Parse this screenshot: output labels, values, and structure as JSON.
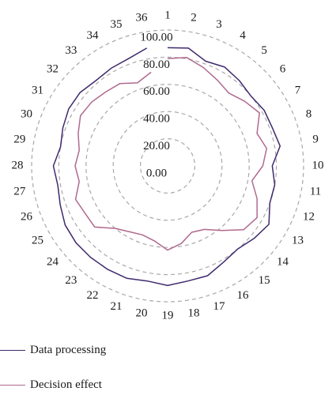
{
  "chart_data": {
    "type": "radar",
    "title": "",
    "categories": [
      "1",
      "2",
      "3",
      "4",
      "5",
      "6",
      "7",
      "8",
      "9",
      "10",
      "11",
      "12",
      "13",
      "14",
      "15",
      "16",
      "17",
      "18",
      "19",
      "20",
      "21",
      "22",
      "23",
      "24",
      "25",
      "26",
      "27",
      "28",
      "29",
      "30",
      "31",
      "32",
      "33",
      "34",
      "35",
      "36"
    ],
    "tick_labels": [
      "0.00",
      "20.00",
      "40.00",
      "60.00",
      "80.00",
      "100.00"
    ],
    "r_range": [
      0,
      100
    ],
    "series": [
      {
        "name": "Data processing",
        "color": "#3f2a6e",
        "values": [
          87,
          88,
          82,
          84,
          82,
          80,
          82,
          82,
          84,
          77,
          80,
          80,
          86,
          83,
          80,
          82,
          86,
          86,
          88,
          86,
          88,
          88,
          88,
          88,
          87,
          84,
          82,
          84,
          80,
          82,
          84,
          84,
          82,
          83,
          84,
          88
        ]
      },
      {
        "name": "Decision effect",
        "color": "#b06a8e",
        "values": [
          79,
          81,
          77,
          73,
          70,
          74,
          78,
          70,
          74,
          70,
          63,
          70,
          76,
          73,
          62,
          54,
          52,
          58,
          62,
          56,
          54,
          56,
          60,
          70,
          70,
          72,
          66,
          68,
          66,
          70,
          74,
          73,
          71,
          70,
          65,
          70
        ]
      }
    ],
    "grid": true,
    "legend_position": "bottom-left"
  }
}
